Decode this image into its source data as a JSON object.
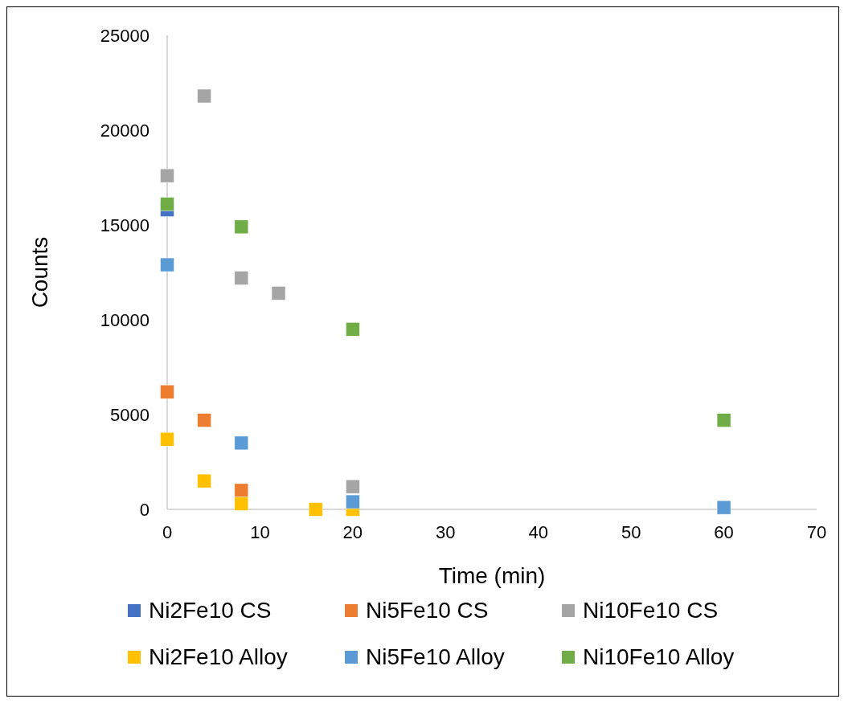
{
  "chart_data": {
    "type": "scatter",
    "xlabel": "Time (min)",
    "ylabel": "Counts",
    "xlim": [
      0,
      70
    ],
    "xticks": [
      0,
      10,
      20,
      30,
      40,
      50,
      60,
      70
    ],
    "ylim": [
      0,
      25000
    ],
    "yticks": [
      0,
      5000,
      10000,
      15000,
      20000,
      25000
    ],
    "grid": false,
    "legend": "bottom",
    "marker": "square",
    "series": [
      {
        "name": "Ni2Fe10 CS",
        "color": "#4472c4",
        "x": [
          0
        ],
        "values": [
          15800
        ]
      },
      {
        "name": "Ni5Fe10 CS",
        "color": "#ed7d31",
        "x": [
          0,
          4,
          8
        ],
        "values": [
          6200,
          4700,
          1000
        ]
      },
      {
        "name": "Ni10Fe10 CS",
        "color": "#a5a5a5",
        "x": [
          0,
          4,
          8,
          12,
          20
        ],
        "values": [
          17600,
          21800,
          12200,
          11400,
          1200
        ]
      },
      {
        "name": "Ni2Fe10 Alloy",
        "color": "#ffc000",
        "x": [
          0,
          4,
          8,
          16,
          20
        ],
        "values": [
          3700,
          1500,
          300,
          0,
          0
        ]
      },
      {
        "name": "Ni5Fe10 Alloy",
        "color": "#5b9bd5",
        "x": [
          0,
          8,
          20,
          60
        ],
        "values": [
          12900,
          3500,
          400,
          100
        ]
      },
      {
        "name": "Ni10Fe10 Alloy",
        "color": "#70ad47",
        "x": [
          0,
          8,
          20,
          60
        ],
        "values": [
          16100,
          14900,
          9500,
          4700
        ]
      }
    ]
  }
}
